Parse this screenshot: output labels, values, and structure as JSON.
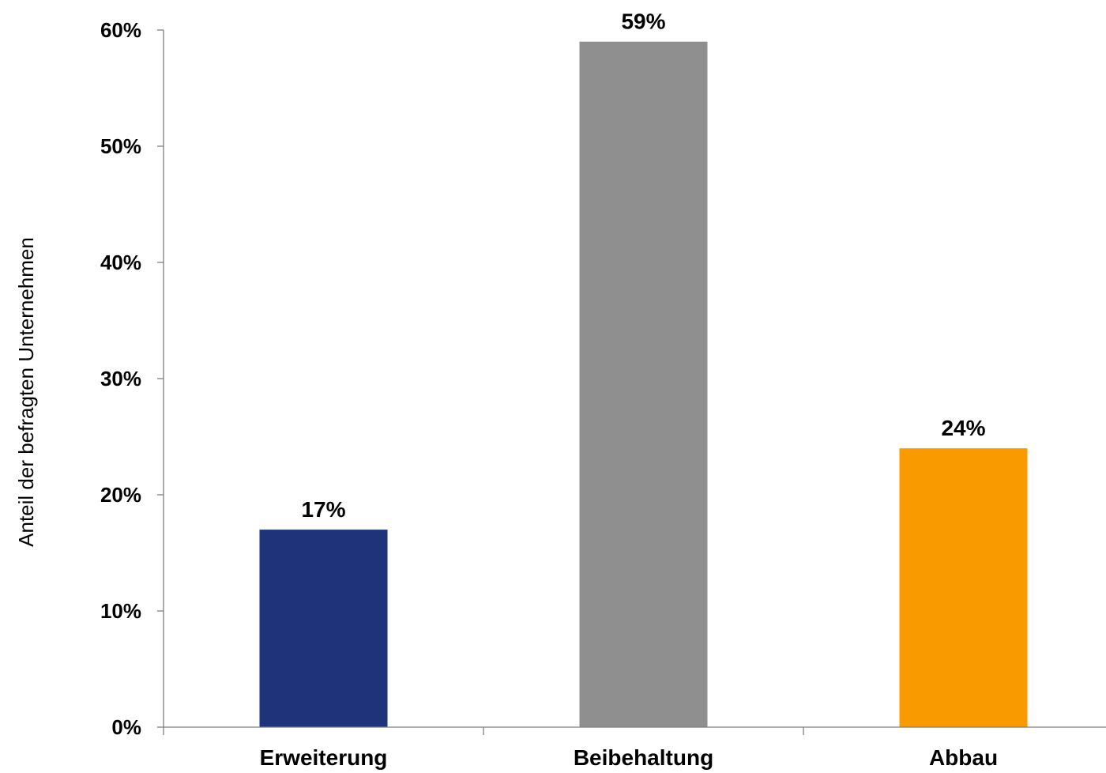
{
  "chart_data": {
    "type": "bar",
    "categories": [
      "Erweiterung",
      "Beibehaltung",
      "Abbau"
    ],
    "values": [
      17,
      59,
      24
    ],
    "value_labels": [
      "17%",
      "59%",
      "24%"
    ],
    "colors": [
      "#1f337b",
      "#8f8f8f",
      "#f89a00"
    ],
    "title": "",
    "xlabel": "",
    "ylabel": "Anteil der befragten Unternehmen",
    "ylim": [
      0,
      60
    ],
    "yticks": [
      0,
      10,
      20,
      30,
      40,
      50,
      60
    ],
    "ytick_labels": [
      "0%",
      "10%",
      "20%",
      "30%",
      "40%",
      "50%",
      "60%"
    ],
    "grid": false,
    "legend": "none"
  }
}
